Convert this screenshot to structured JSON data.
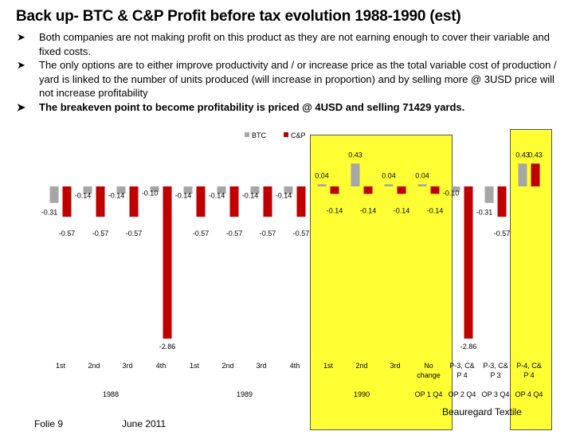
{
  "slide": {
    "title": "Back up- BTC & C&P Profit before tax evolution 1988-1990 (est)",
    "bullets": [
      "Both companies are not making profit on this product as they are not earning enough to cover their variable and fixed costs.",
      "The only options are to either improve productivity and / or increase price as the total variable cost of production / yard is linked to the number of units produced (will increase in proportion) and by selling more @ 3USD price will not increase profitability",
      "The breakeven point  to become profitability is priced @ 4USD and selling 71429 yards."
    ],
    "footer_left": "Folie 9",
    "footer_date": "June 2011",
    "footer_company": "Beauregard Textile"
  },
  "colors": {
    "btc": "#a6a6a6",
    "cp": "#c00000",
    "highlight": "#ffff33"
  },
  "chart_data": {
    "type": "bar",
    "series": [
      {
        "name": "BTC",
        "values": [
          -0.31,
          -0.14,
          -0.14,
          -0.1,
          -0.14,
          -0.14,
          -0.14,
          -0.14,
          0.04,
          0.43,
          0.04,
          0.04,
          -0.1,
          -0.31,
          0.43
        ]
      },
      {
        "name": "C&P",
        "values": [
          -0.57,
          -0.57,
          -0.57,
          -2.86,
          -0.57,
          -0.57,
          -0.57,
          -0.57,
          -0.14,
          -0.14,
          -0.14,
          -0.14,
          -2.86,
          -0.57,
          0.43
        ]
      }
    ],
    "categories": [
      "1st",
      "2nd",
      "3rd",
      "4th",
      "1st",
      "2nd",
      "3rd",
      "4th",
      "1st",
      "2nd",
      "3rd",
      "No change",
      "P-3, C& P 4",
      "P-3, C& P 3",
      "P-4, C& P 4"
    ],
    "groups": [
      "1988",
      "1989",
      "1990",
      "OP 1 Q4",
      "OP 2 Q4",
      "OP 3 Q4",
      "OP 4 Q4"
    ],
    "ylim": [
      -2.86,
      0.43
    ],
    "legend_position": "top",
    "xlabel": "",
    "ylabel": ""
  }
}
